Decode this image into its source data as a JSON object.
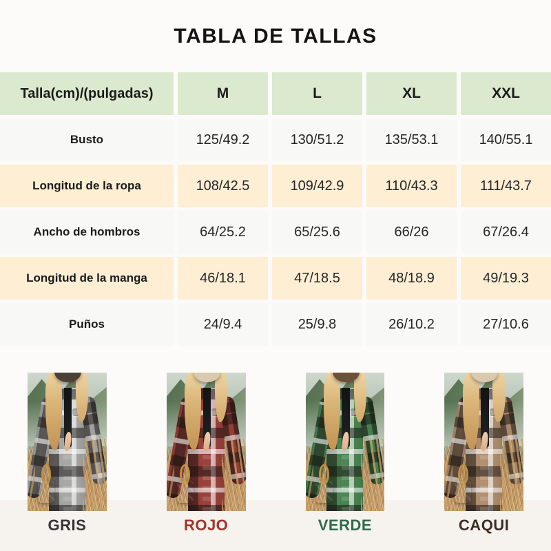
{
  "title": "TABLA DE TALLAS",
  "size_chart": {
    "columns": [
      "Talla(cm)/(pulgadas)",
      "M",
      "L",
      "XL",
      "XXL"
    ],
    "rows": [
      {
        "label": "Busto",
        "values": [
          "125/49.2",
          "130/51.2",
          "135/53.1",
          "140/55.1"
        ]
      },
      {
        "label": "Longitud de la ropa",
        "values": [
          "108/42.5",
          "109/42.9",
          "110/43.3",
          "111/43.7"
        ]
      },
      {
        "label": "Ancho de hombros",
        "values": [
          "64/25.2",
          "65/25.6",
          "66/26",
          "67/26.4"
        ]
      },
      {
        "label": "Longitud de la manga",
        "values": [
          "46/18.1",
          "47/18.5",
          "48/18.9",
          "49/19.3"
        ]
      },
      {
        "label": "Puños",
        "values": [
          "24/9.4",
          "25/9.8",
          "26/10.2",
          "27/10.6"
        ]
      }
    ],
    "colors": {
      "header_bg": "#dbe9ce",
      "row_bg": "#f8f8f7",
      "row_alt_bg": "#fdeed4"
    }
  },
  "products": [
    {
      "label": "GRIS",
      "color_hex": "#a8a8a6",
      "label_color": "#333333",
      "css_vars": "--pb:#a8a8a6;--hat:#4a4036;--lc:#333333"
    },
    {
      "label": "ROJO",
      "color_hex": "#9b423c",
      "label_color": "#a1332b",
      "css_vars": "--pb:#9b423c;--hat:#d9caae;--lc:#a1332b"
    },
    {
      "label": "VERDE",
      "color_hex": "#4c8653",
      "label_color": "#2e6b4c",
      "css_vars": "--pb:#4c8653;--hat:#6b5137;--lc:#2e6b4c"
    },
    {
      "label": "CAQUI",
      "color_hex": "#b29070",
      "label_color": "#3a2d24",
      "css_vars": "--pb:#b29070;--hat:#d9caae;--lc:#3a2d24"
    }
  ]
}
